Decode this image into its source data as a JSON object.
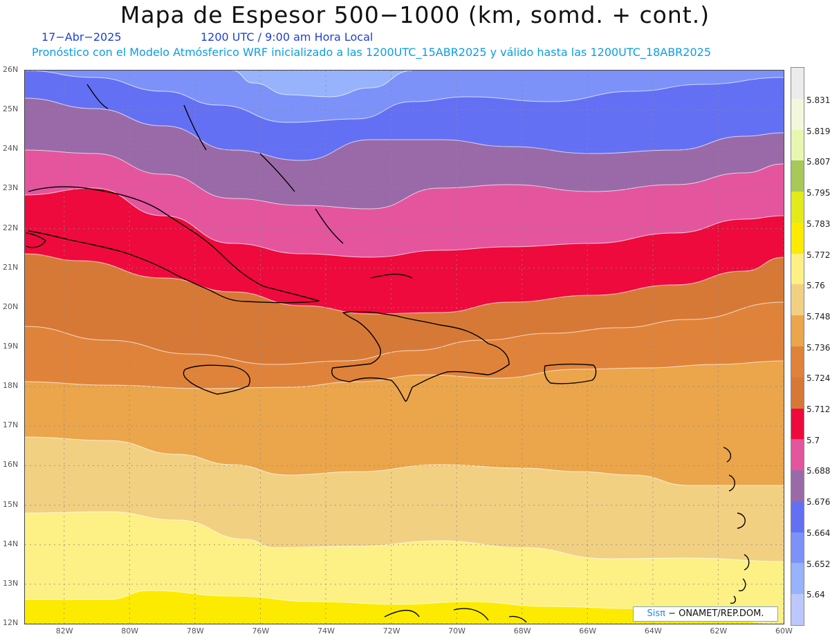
{
  "header": {
    "title": "Mapa de Espesor 500−1000 (km, somd. + cont.)",
    "date": "17−Abr−2025",
    "time": "1200 UTC / 9:00 am Hora Local",
    "description": "Pronóstico con el Modelo Atmósferico WRF inicializado a las 1200UTC_15ABR2025 y válido hasta las  1200UTC_18ABR2025"
  },
  "map": {
    "lat_labels": [
      "26N",
      "25N",
      "24N",
      "23N",
      "22N",
      "21N",
      "20N",
      "19N",
      "18N",
      "17N",
      "16N",
      "15N",
      "14N",
      "13N",
      "12N"
    ],
    "lon_labels": [
      "82W",
      "80W",
      "78W",
      "76W",
      "74W",
      "72W",
      "70W",
      "68W",
      "66W",
      "64W",
      "62W",
      "60W"
    ],
    "lat_range": [
      12,
      26
    ],
    "lon_range": [
      -83.2,
      -60
    ],
    "band_colors": [
      "#fceb00",
      "#fdf084",
      "#f2d082",
      "#eba54a",
      "#e0833a",
      "#d77936",
      "#ee0a3c",
      "#e4559e",
      "#9a6aa8",
      "#6470f3",
      "#7c92f8",
      "#96b3fb",
      "#bcc8fd"
    ],
    "credit": {
      "prefix": "Sisπ",
      "suffix": " − ONAMET/REP.DOM."
    }
  },
  "colorbar": {
    "labels": [
      "5.831",
      "5.819",
      "5.807",
      "5.795",
      "5.783",
      "5.772",
      "5.76",
      "5.748",
      "5.736",
      "5.724",
      "5.712",
      "5.7",
      "5.688",
      "5.676",
      "5.664",
      "5.652",
      "5.64"
    ],
    "colors": [
      "#bcc8fd",
      "#96b3fb",
      "#7c92f8",
      "#6470f3",
      "#9a6aa8",
      "#e4559e",
      "#ee0a3c",
      "#d77936",
      "#e0833a",
      "#eba54a",
      "#f2d082",
      "#fdf084",
      "#fceb00",
      "#e3ea1a",
      "#a8c858",
      "#e8f7b0",
      "#f3f7dc",
      "#ececec"
    ]
  }
}
